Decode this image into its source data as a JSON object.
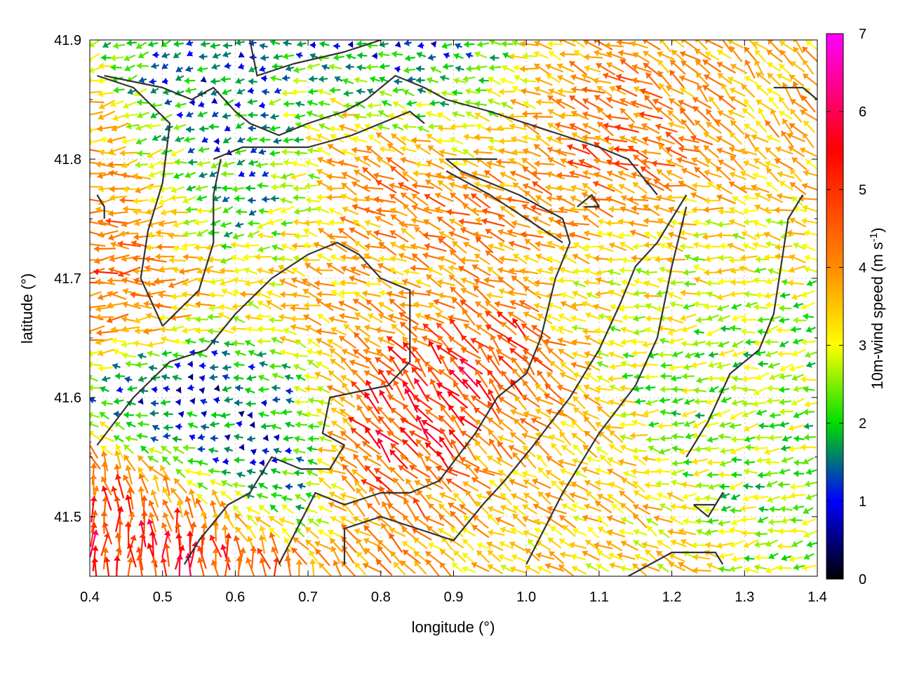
{
  "chart_data": {
    "type": "vector-field",
    "xlabel": "longitude (°)",
    "ylabel": "latitude (°)",
    "xlim": [
      0.4,
      1.4
    ],
    "ylim": [
      41.45,
      41.9
    ],
    "xticks": [
      "0.4",
      "0.5",
      "0.6",
      "0.7",
      "0.8",
      "0.9",
      "1.0",
      "1.1",
      "1.2",
      "1.3",
      "1.4"
    ],
    "yticks": [
      "41.5",
      "41.6",
      "41.7",
      "41.8",
      "41.9"
    ],
    "colorbar": {
      "label_main": "10m-wind speed (m s",
      "label_sup": "-1",
      "label_end": ")",
      "range": [
        0,
        7
      ],
      "ticks": [
        "0",
        "1",
        "2",
        "3",
        "4",
        "5",
        "6",
        "7"
      ],
      "palette": [
        "#000000",
        "#0000ff",
        "#00ff00",
        "#ffff00",
        "#ff8000",
        "#ff0000",
        "#ff00ff"
      ]
    },
    "grid": true,
    "wind_regimes": [
      {
        "lon": 0.45,
        "lat": 41.74,
        "speed": 4.8,
        "dir_deg": 180
      },
      {
        "lon": 0.49,
        "lat": 41.48,
        "speed": 5.5,
        "dir_deg": 90
      },
      {
        "lon": 0.82,
        "lat": 41.79,
        "speed": 5.0,
        "dir_deg": 150
      },
      {
        "lon": 1.14,
        "lat": 41.8,
        "speed": 5.2,
        "dir_deg": 150
      },
      {
        "lon": 0.85,
        "lat": 41.58,
        "speed": 5.5,
        "dir_deg": 130
      },
      {
        "lon": 1.05,
        "lat": 41.85,
        "speed": 4.2,
        "dir_deg": 160
      },
      {
        "lon": 0.75,
        "lat": 41.7,
        "speed": 3.8,
        "dir_deg": 160
      },
      {
        "lon": 1.2,
        "lat": 41.74,
        "speed": 3.0,
        "dir_deg": 175
      },
      {
        "lon": 0.6,
        "lat": 41.57,
        "speed": 1.0,
        "dir_deg": 180
      },
      {
        "lon": 0.6,
        "lat": 41.78,
        "speed": 1.2,
        "dir_deg": 200
      },
      {
        "lon": 0.88,
        "lat": 41.86,
        "speed": 1.0,
        "dir_deg": 180
      },
      {
        "lon": 1.0,
        "lat": 41.52,
        "speed": 3.5,
        "dir_deg": 150
      },
      {
        "lon": 1.33,
        "lat": 41.6,
        "speed": 2.5,
        "dir_deg": 190
      },
      {
        "lon": 1.3,
        "lat": 41.86,
        "speed": 3.8,
        "dir_deg": 135
      }
    ],
    "terrain_contours": [
      [
        [
          0.42,
          41.87
        ],
        [
          0.5,
          41.86
        ],
        [
          0.54,
          41.85
        ],
        [
          0.57,
          41.86
        ],
        [
          0.6,
          41.84
        ],
        [
          0.62,
          41.83
        ],
        [
          0.66,
          41.82
        ],
        [
          0.7,
          41.83
        ],
        [
          0.75,
          41.84
        ],
        [
          0.78,
          41.85
        ],
        [
          0.82,
          41.87
        ],
        [
          0.86,
          41.86
        ],
        [
          0.89,
          41.85
        ],
        [
          0.95,
          41.84
        ],
        [
          1.0,
          41.83
        ],
        [
          1.05,
          41.82
        ],
        [
          1.1,
          41.81
        ],
        [
          1.14,
          41.8
        ],
        [
          1.18,
          41.77
        ]
      ],
      [
        [
          0.57,
          41.8
        ],
        [
          0.61,
          41.81
        ],
        [
          0.7,
          41.81
        ],
        [
          0.76,
          41.82
        ],
        [
          0.8,
          41.83
        ],
        [
          0.84,
          41.84
        ],
        [
          0.86,
          41.83
        ]
      ],
      [
        [
          0.5,
          41.66
        ],
        [
          0.47,
          41.7
        ],
        [
          0.48,
          41.74
        ],
        [
          0.5,
          41.78
        ],
        [
          0.51,
          41.83
        ],
        [
          0.46,
          41.86
        ],
        [
          0.41,
          41.87
        ]
      ],
      [
        [
          0.5,
          41.66
        ],
        [
          0.55,
          41.69
        ],
        [
          0.57,
          41.73
        ],
        [
          0.57,
          41.77
        ],
        [
          0.58,
          41.8
        ]
      ],
      [
        [
          0.41,
          41.56
        ],
        [
          0.46,
          41.6
        ],
        [
          0.51,
          41.63
        ],
        [
          0.56,
          41.64
        ],
        [
          0.6,
          41.67
        ],
        [
          0.65,
          41.7
        ],
        [
          0.7,
          41.72
        ],
        [
          0.74,
          41.73
        ],
        [
          0.77,
          41.72
        ],
        [
          0.8,
          41.7
        ],
        [
          0.84,
          41.69
        ],
        [
          0.84,
          41.63
        ],
        [
          0.81,
          41.61
        ],
        [
          0.73,
          41.6
        ],
        [
          0.72,
          41.57
        ],
        [
          0.75,
          41.56
        ]
      ],
      [
        [
          0.75,
          41.56
        ],
        [
          0.73,
          41.54
        ],
        [
          0.69,
          41.54
        ],
        [
          0.65,
          41.55
        ],
        [
          0.62,
          41.52
        ],
        [
          0.59,
          41.51
        ],
        [
          0.55,
          41.48
        ],
        [
          0.53,
          41.46
        ]
      ],
      [
        [
          0.66,
          41.46
        ],
        [
          0.71,
          41.52
        ],
        [
          0.75,
          41.51
        ],
        [
          0.8,
          41.52
        ],
        [
          0.84,
          41.52
        ],
        [
          0.88,
          41.53
        ],
        [
          0.93,
          41.57
        ],
        [
          0.96,
          41.6
        ],
        [
          1.0,
          41.62
        ],
        [
          1.02,
          41.65
        ],
        [
          1.04,
          41.7
        ],
        [
          1.06,
          41.73
        ],
        [
          1.05,
          41.75
        ],
        [
          0.99,
          41.77
        ],
        [
          0.91,
          41.79
        ],
        [
          0.89,
          41.8
        ],
        [
          0.96,
          41.8
        ]
      ],
      [
        [
          0.89,
          41.79
        ],
        [
          0.95,
          41.77
        ],
        [
          1.0,
          41.75
        ],
        [
          1.05,
          41.73
        ]
      ],
      [
        [
          0.75,
          41.46
        ],
        [
          0.75,
          41.49
        ],
        [
          0.8,
          41.5
        ],
        [
          0.85,
          41.49
        ],
        [
          0.9,
          41.48
        ],
        [
          0.94,
          41.51
        ],
        [
          0.97,
          41.53
        ],
        [
          1.01,
          41.56
        ],
        [
          1.06,
          41.6
        ],
        [
          1.1,
          41.64
        ],
        [
          1.13,
          41.68
        ],
        [
          1.15,
          41.71
        ],
        [
          1.18,
          41.73
        ],
        [
          1.2,
          41.75
        ],
        [
          1.22,
          41.77
        ]
      ],
      [
        [
          1.0,
          41.46
        ],
        [
          1.05,
          41.52
        ],
        [
          1.1,
          41.57
        ],
        [
          1.15,
          41.61
        ],
        [
          1.18,
          41.65
        ],
        [
          1.2,
          41.71
        ],
        [
          1.22,
          41.76
        ]
      ],
      [
        [
          1.07,
          41.76
        ],
        [
          1.09,
          41.77
        ],
        [
          1.1,
          41.76
        ],
        [
          1.08,
          41.76
        ]
      ],
      [
        [
          1.23,
          41.51
        ],
        [
          1.26,
          41.51
        ],
        [
          1.27,
          41.52
        ],
        [
          1.25,
          41.5
        ],
        [
          1.23,
          41.51
        ]
      ],
      [
        [
          1.14,
          41.45
        ],
        [
          1.2,
          41.47
        ],
        [
          1.26,
          41.47
        ],
        [
          1.27,
          41.46
        ]
      ],
      [
        [
          1.22,
          41.55
        ],
        [
          1.25,
          41.58
        ],
        [
          1.28,
          41.62
        ],
        [
          1.32,
          41.64
        ],
        [
          1.34,
          41.67
        ],
        [
          1.35,
          41.71
        ],
        [
          1.36,
          41.75
        ],
        [
          1.38,
          41.77
        ]
      ],
      [
        [
          1.34,
          41.86
        ],
        [
          1.38,
          41.86
        ],
        [
          1.4,
          41.85
        ]
      ],
      [
        [
          0.62,
          41.9
        ],
        [
          0.63,
          41.87
        ],
        [
          0.68,
          41.88
        ],
        [
          0.75,
          41.89
        ],
        [
          0.8,
          41.9
        ]
      ],
      [
        [
          0.41,
          41.77
        ],
        [
          0.42,
          41.76
        ],
        [
          0.42,
          41.75
        ]
      ]
    ]
  }
}
